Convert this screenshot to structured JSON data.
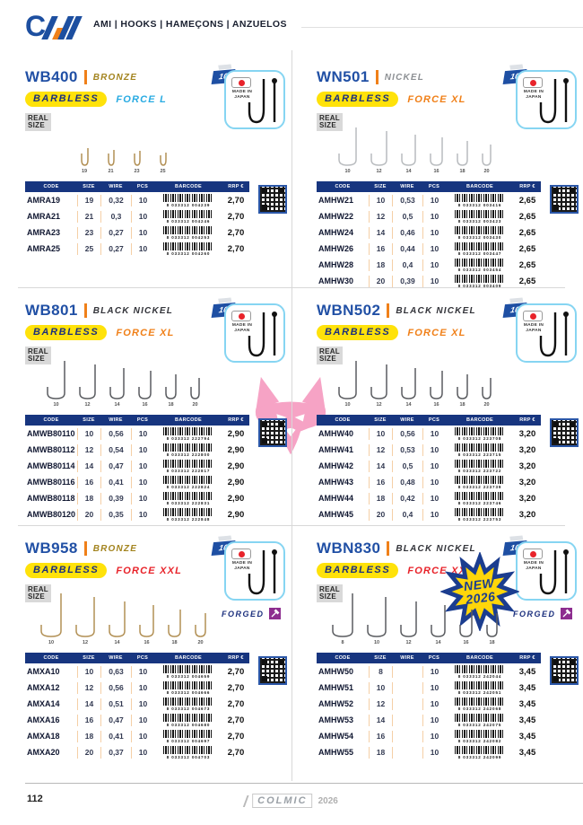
{
  "header": {
    "brand_line": "AMI | HOOKS | HAMEÇONS | ANZUELOS",
    "logo": "CM"
  },
  "colors": {
    "navy": "#17357f",
    "title_blue": "#2150a5",
    "accent_orange": "#f08019",
    "barbless_yellow": "#ffe20a",
    "force_l_cyan": "#29abe2",
    "force_xl_orange": "#f08019",
    "force_xxl_red": "#e8232a",
    "forged_purple": "#8d2d8f",
    "japan_card_blue": "#86d5f2",
    "watermark_pink": "#f6a3c5"
  },
  "table_headers": [
    "CODE",
    "SIZE",
    "WIRE",
    "PCS",
    "BARCODE",
    "RRP €"
  ],
  "sections": [
    {
      "code": "WB400",
      "finish": "BRONZE",
      "finish_color": "#a3841f",
      "series": "BARBLESS",
      "force": "FORCE L",
      "force_color": "#29abe2",
      "real_size_1": "REAL",
      "real_size_2": "SIZE",
      "qty_badge": "10",
      "made_in": "MADE IN JAPAN",
      "hook_color": "#b29055",
      "hook_sizes": [
        "19",
        "21",
        "23",
        "25"
      ],
      "table": {
        "rows": [
          {
            "code": "AMRA19",
            "size": "19",
            "wire": "0,32",
            "pcs": "10",
            "barcode": "8 033312 004239",
            "price": "2,70"
          },
          {
            "code": "AMRA21",
            "size": "21",
            "wire": "0,3",
            "pcs": "10",
            "barcode": "8 033312 004246",
            "price": "2,70"
          },
          {
            "code": "AMRA23",
            "size": "23",
            "wire": "0,27",
            "pcs": "10",
            "barcode": "8 033312 004253",
            "price": "2,70"
          },
          {
            "code": "AMRA25",
            "size": "25",
            "wire": "0,27",
            "pcs": "10",
            "barcode": "8 033312 004260",
            "price": "2,70"
          }
        ]
      }
    },
    {
      "code": "WN501",
      "finish": "NICKEL",
      "finish_color": "#8d9094",
      "series": "BARBLESS",
      "force": "FORCE XL",
      "force_color": "#f08019",
      "real_size_1": "REAL",
      "real_size_2": "SIZE",
      "qty_badge": "10",
      "made_in": "MADE IN JAPAN",
      "hook_color": "#b9bcbf",
      "hook_sizes": [
        "10",
        "12",
        "14",
        "16",
        "18",
        "20"
      ],
      "table": {
        "rows": [
          {
            "code": "AMHW21",
            "size": "10",
            "wire": "0,53",
            "pcs": "10",
            "barcode": "8 033312 003416",
            "price": "2,65"
          },
          {
            "code": "AMHW22",
            "size": "12",
            "wire": "0,5",
            "pcs": "10",
            "barcode": "8 033312 003423",
            "price": "2,65"
          },
          {
            "code": "AMHW24",
            "size": "14",
            "wire": "0,46",
            "pcs": "10",
            "barcode": "8 033312 003430",
            "price": "2,65"
          },
          {
            "code": "AMHW26",
            "size": "16",
            "wire": "0,44",
            "pcs": "10",
            "barcode": "8 033312 003447",
            "price": "2,65"
          },
          {
            "code": "AMHW28",
            "size": "18",
            "wire": "0,4",
            "pcs": "10",
            "barcode": "8 033312 003454",
            "price": "2,65"
          },
          {
            "code": "AMHW30",
            "size": "20",
            "wire": "0,39",
            "pcs": "10",
            "barcode": "8 033312 003409",
            "price": "2,65"
          }
        ]
      }
    },
    {
      "code": "WB801",
      "finish": "BLACK NICKEL",
      "finish_color": "#33343a",
      "series": "BARBLESS",
      "force": "FORCE XL",
      "force_color": "#f08019",
      "real_size_1": "REAL",
      "real_size_2": "SIZE",
      "qty_badge": "10",
      "made_in": "MADE IN JAPAN",
      "hook_color": "#5a5c60",
      "hook_sizes": [
        "10",
        "12",
        "14",
        "16",
        "18",
        "20"
      ],
      "table": {
        "rows": [
          {
            "code": "AMWB80110",
            "size": "10",
            "wire": "0,56",
            "pcs": "10",
            "barcode": "8 033312 222794",
            "price": "2,90"
          },
          {
            "code": "AMWB80112",
            "size": "12",
            "wire": "0,54",
            "pcs": "10",
            "barcode": "8 033312 222800",
            "price": "2,90"
          },
          {
            "code": "AMWB80114",
            "size": "14",
            "wire": "0,47",
            "pcs": "10",
            "barcode": "8 033312 222817",
            "price": "2,90"
          },
          {
            "code": "AMWB80116",
            "size": "16",
            "wire": "0,41",
            "pcs": "10",
            "barcode": "8 033312 222824",
            "price": "2,90"
          },
          {
            "code": "AMWB80118",
            "size": "18",
            "wire": "0,39",
            "pcs": "10",
            "barcode": "8 033312 222831",
            "price": "2,90"
          },
          {
            "code": "AMWB80120",
            "size": "20",
            "wire": "0,35",
            "pcs": "10",
            "barcode": "8 033312 222848",
            "price": "2,90"
          }
        ]
      }
    },
    {
      "code": "WBN502",
      "finish": "BLACK NICKEL",
      "finish_color": "#33343a",
      "series": "BARBLESS",
      "force": "FORCE XL",
      "force_color": "#f08019",
      "real_size_1": "REAL",
      "real_size_2": "SIZE",
      "qty_badge": "10",
      "made_in": "MADE IN JAPAN",
      "hook_color": "#5a5c60",
      "hook_sizes": [
        "10",
        "12",
        "14",
        "16",
        "18",
        "20"
      ],
      "table": {
        "rows": [
          {
            "code": "AMHW40",
            "size": "10",
            "wire": "0,56",
            "pcs": "10",
            "barcode": "8 033312 223708",
            "price": "3,20"
          },
          {
            "code": "AMHW41",
            "size": "12",
            "wire": "0,53",
            "pcs": "10",
            "barcode": "8 033312 223715",
            "price": "3,20"
          },
          {
            "code": "AMHW42",
            "size": "14",
            "wire": "0,5",
            "pcs": "10",
            "barcode": "8 033312 223722",
            "price": "3,20"
          },
          {
            "code": "AMHW43",
            "size": "16",
            "wire": "0,48",
            "pcs": "10",
            "barcode": "8 033312 223739",
            "price": "3,20"
          },
          {
            "code": "AMHW44",
            "size": "18",
            "wire": "0,42",
            "pcs": "10",
            "barcode": "8 033312 223746",
            "price": "3,20"
          },
          {
            "code": "AMHW45",
            "size": "20",
            "wire": "0,4",
            "pcs": "10",
            "barcode": "8 033312 223753",
            "price": "3,20"
          }
        ]
      }
    },
    {
      "code": "WB958",
      "finish": "BRONZE",
      "finish_color": "#a3841f",
      "series": "BARBLESS",
      "force": "FORCE XXL",
      "force_color": "#e8232a",
      "real_size_1": "REAL",
      "real_size_2": "SIZE",
      "qty_badge": "10",
      "made_in": "MADE IN JAPAN",
      "forged": "FORGED",
      "hook_color": "#b29055",
      "hook_sizes": [
        "10",
        "12",
        "14",
        "16",
        "18",
        "20"
      ],
      "table": {
        "rows": [
          {
            "code": "AMXA10",
            "size": "10",
            "wire": "0,63",
            "pcs": "10",
            "barcode": "8 033312 004659",
            "price": "2,70"
          },
          {
            "code": "AMXA12",
            "size": "12",
            "wire": "0,56",
            "pcs": "10",
            "barcode": "8 033312 004666",
            "price": "2,70"
          },
          {
            "code": "AMXA14",
            "size": "14",
            "wire": "0,51",
            "pcs": "10",
            "barcode": "8 033312 004673",
            "price": "2,70"
          },
          {
            "code": "AMXA16",
            "size": "16",
            "wire": "0,47",
            "pcs": "10",
            "barcode": "8 033312 004680",
            "price": "2,70"
          },
          {
            "code": "AMXA18",
            "size": "18",
            "wire": "0,41",
            "pcs": "10",
            "barcode": "8 033312 004697",
            "price": "2,70"
          },
          {
            "code": "AMXA20",
            "size": "20",
            "wire": "0,37",
            "pcs": "10",
            "barcode": "8 033312 004703",
            "price": "2,70"
          }
        ]
      }
    },
    {
      "code": "WBN830",
      "finish": "BLACK NICKEL",
      "finish_color": "#33343a",
      "series": "BARBLESS",
      "force": "FORCE XXL",
      "force_color": "#e8232a",
      "real_size_1": "REAL",
      "real_size_2": "SIZE",
      "qty_badge": "10",
      "made_in": "MADE IN JAPAN",
      "forged": "FORGED",
      "new_badge_1": "NEW",
      "new_badge_2": "2026",
      "hook_color": "#5a5c60",
      "hook_sizes": [
        "8",
        "10",
        "12",
        "14",
        "16",
        "18"
      ],
      "table": {
        "rows": [
          {
            "code": "AMHW50",
            "size": "8",
            "wire": "",
            "pcs": "10",
            "barcode": "8 033312 242044",
            "price": "3,45"
          },
          {
            "code": "AMHW51",
            "size": "10",
            "wire": "",
            "pcs": "10",
            "barcode": "8 033312 242051",
            "price": "3,45"
          },
          {
            "code": "AMHW52",
            "size": "12",
            "wire": "",
            "pcs": "10",
            "barcode": "8 033312 242068",
            "price": "3,45"
          },
          {
            "code": "AMHW53",
            "size": "14",
            "wire": "",
            "pcs": "10",
            "barcode": "8 033312 242075",
            "price": "3,45"
          },
          {
            "code": "AMHW54",
            "size": "16",
            "wire": "",
            "pcs": "10",
            "barcode": "8 033312 242082",
            "price": "3,45"
          },
          {
            "code": "AMHW55",
            "size": "18",
            "wire": "",
            "pcs": "10",
            "barcode": "8 033312 242099",
            "price": "3,45"
          }
        ]
      }
    }
  ],
  "footer": {
    "page_number": "112",
    "brand": "COLMIC",
    "year": "2026"
  }
}
